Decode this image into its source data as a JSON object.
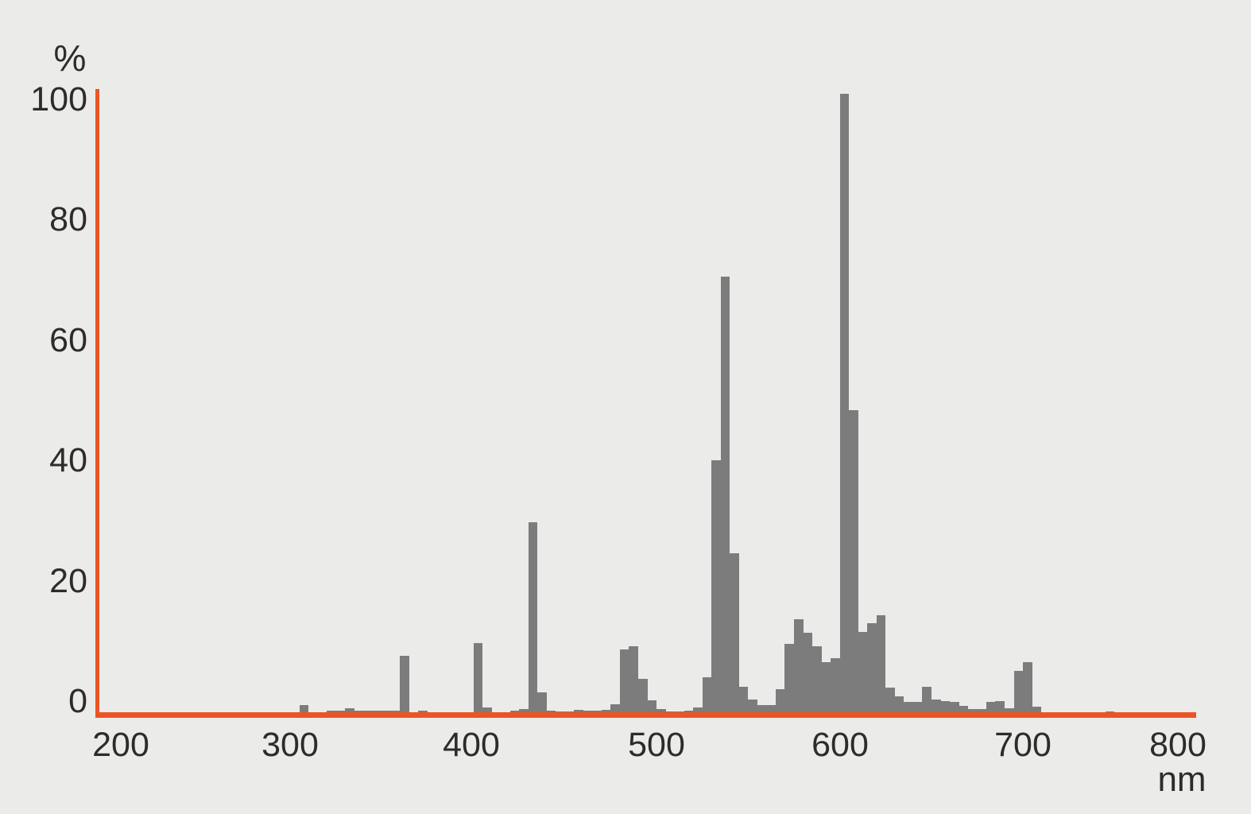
{
  "chart_data": {
    "type": "bar",
    "title": "",
    "ylabel": "%",
    "xlabel": "nm",
    "legend": null,
    "grid": false,
    "xlim": [
      200,
      810
    ],
    "ylim": [
      0,
      100
    ],
    "x_ticks": [
      200,
      300,
      400,
      500,
      600,
      700,
      800
    ],
    "y_ticks": [
      0,
      20,
      40,
      60,
      80,
      100
    ],
    "bin_width_nm": 5,
    "bin_fields": [
      "wavelength_nm_bin_start",
      "percent"
    ],
    "bins": [
      [
        310,
        1.5
      ],
      [
        315,
        0.3
      ],
      [
        320,
        0.3
      ],
      [
        325,
        0.6
      ],
      [
        330,
        0.6
      ],
      [
        335,
        1.0
      ],
      [
        340,
        0.6
      ],
      [
        345,
        0.6
      ],
      [
        350,
        0.6
      ],
      [
        355,
        0.6
      ],
      [
        360,
        0.6
      ],
      [
        365,
        9.5
      ],
      [
        370,
        0.4
      ],
      [
        375,
        0.7
      ],
      [
        380,
        0.2
      ],
      [
        385,
        0.2
      ],
      [
        390,
        0.2
      ],
      [
        395,
        0.3
      ],
      [
        400,
        0.3
      ],
      [
        405,
        11.5
      ],
      [
        410,
        1.1
      ],
      [
        415,
        0.3
      ],
      [
        420,
        0.4
      ],
      [
        425,
        0.6
      ],
      [
        430,
        0.9
      ],
      [
        435,
        31
      ],
      [
        440,
        3.6
      ],
      [
        445,
        0.6
      ],
      [
        450,
        0.5
      ],
      [
        455,
        0.5
      ],
      [
        460,
        0.8
      ],
      [
        465,
        0.6
      ],
      [
        470,
        0.6
      ],
      [
        475,
        0.8
      ],
      [
        480,
        1.7
      ],
      [
        485,
        10.5
      ],
      [
        490,
        11
      ],
      [
        495,
        5.8
      ],
      [
        500,
        2.3
      ],
      [
        505,
        0.9
      ],
      [
        510,
        0.5
      ],
      [
        515,
        0.5
      ],
      [
        520,
        0.6
      ],
      [
        525,
        1.2
      ],
      [
        530,
        6
      ],
      [
        535,
        41
      ],
      [
        540,
        70.5
      ],
      [
        545,
        26
      ],
      [
        550,
        4.5
      ],
      [
        555,
        2.4
      ],
      [
        560,
        1.6
      ],
      [
        565,
        1.5
      ],
      [
        570,
        4.1
      ],
      [
        575,
        11.4
      ],
      [
        580,
        15.4
      ],
      [
        585,
        13.2
      ],
      [
        590,
        11
      ],
      [
        595,
        8.5
      ],
      [
        600,
        9.1
      ],
      [
        605,
        100
      ],
      [
        610,
        49
      ],
      [
        615,
        13.3
      ],
      [
        620,
        14.7
      ],
      [
        625,
        16
      ],
      [
        630,
        4.3
      ],
      [
        635,
        2.9
      ],
      [
        640,
        2.0
      ],
      [
        645,
        2.0
      ],
      [
        650,
        4.5
      ],
      [
        655,
        2.5
      ],
      [
        660,
        2.2
      ],
      [
        665,
        2.0
      ],
      [
        670,
        1.4
      ],
      [
        675,
        0.9
      ],
      [
        680,
        0.9
      ],
      [
        685,
        2.1
      ],
      [
        690,
        2.2
      ],
      [
        695,
        1.0
      ],
      [
        700,
        7.1
      ],
      [
        705,
        8.5
      ],
      [
        710,
        1.3
      ],
      [
        715,
        0.2
      ],
      [
        720,
        0.2
      ],
      [
        725,
        0.2
      ],
      [
        730,
        0.3
      ],
      [
        735,
        0.3
      ],
      [
        740,
        0.4
      ],
      [
        745,
        0.3
      ],
      [
        750,
        0.5
      ],
      [
        755,
        0.4
      ],
      [
        760,
        0.3
      ]
    ],
    "colors": {
      "bar": "#7c7c7c",
      "axis": "#ec5426",
      "background": "#ebebe9",
      "text": "#2d2c2a"
    }
  }
}
